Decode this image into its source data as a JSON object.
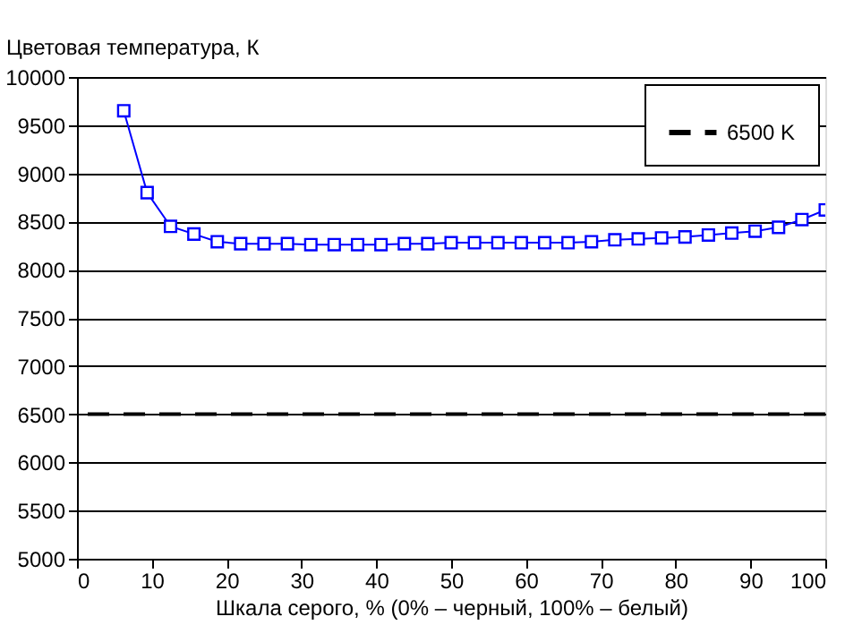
{
  "chart_data": {
    "type": "line",
    "xlabel": "Шкала серого, % (0% – черный, 100% – белый)",
    "ylabel": "Цветовая температура, К",
    "x": [
      6.25,
      9.375,
      12.5,
      15.625,
      18.75,
      21.875,
      25,
      28.125,
      31.25,
      34.375,
      37.5,
      40.625,
      43.75,
      46.875,
      50,
      53.125,
      56.25,
      59.375,
      62.5,
      65.625,
      68.75,
      71.875,
      75,
      78.125,
      81.25,
      84.375,
      87.5,
      90.625,
      93.75,
      96.875,
      100
    ],
    "series": [
      {
        "color": "#0000ff",
        "marker": "square",
        "values": [
          9650,
          8800,
          8450,
          8370,
          8290,
          8270,
          8270,
          8270,
          8260,
          8260,
          8260,
          8260,
          8270,
          8270,
          8280,
          8280,
          8280,
          8280,
          8280,
          8280,
          8290,
          8310,
          8320,
          8330,
          8340,
          8360,
          8380,
          8400,
          8440,
          8520,
          8620
        ]
      }
    ],
    "ref_lines": [
      {
        "axis": "y",
        "value": 6500,
        "label": "6500 K",
        "color": "#000000",
        "line_style": "dashed"
      }
    ],
    "xlim": [
      0,
      100
    ],
    "xticks": [
      0,
      10,
      20,
      30,
      40,
      50,
      60,
      70,
      80,
      90,
      100
    ],
    "ylim": [
      5000,
      10000
    ],
    "yticks": [
      5000,
      5500,
      6000,
      6500,
      7000,
      7500,
      8000,
      8500,
      9000,
      9500,
      10000
    ],
    "grid": "y",
    "legend": "top right"
  }
}
